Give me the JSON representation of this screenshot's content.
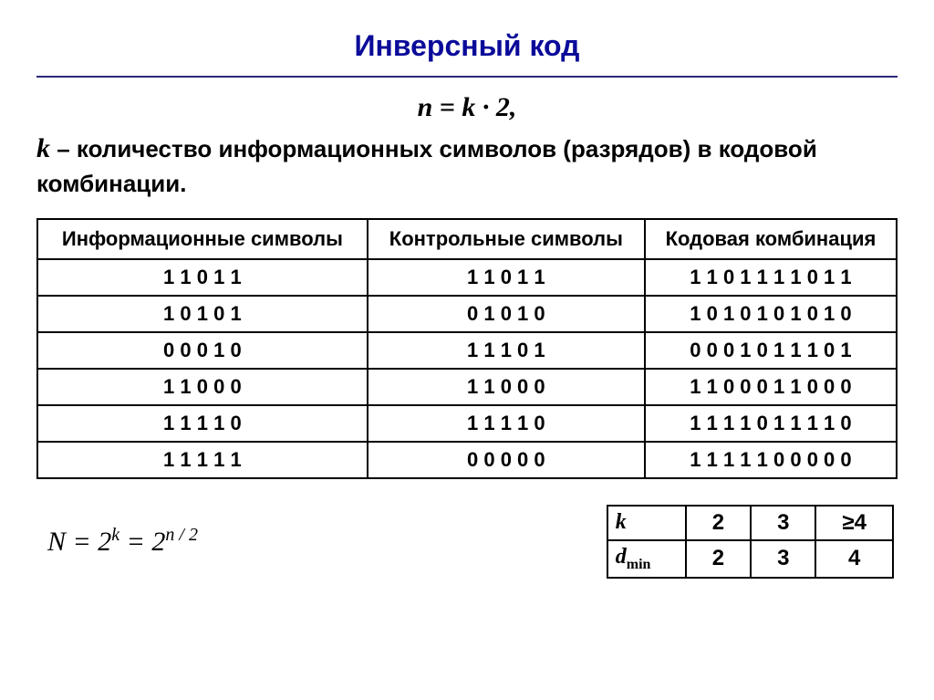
{
  "title": "Инверсный код",
  "formula_top": "n = k · 2,",
  "description_k": "k",
  "description_text": " – количество информационных символов (разрядов) в кодовой комбинации.",
  "table": {
    "headers": [
      "Информационные символы",
      "Контрольные символы",
      "Кодовая комбинация"
    ],
    "rows": [
      [
        "1 1 0 1 1",
        "1 1 0 1 1",
        "1 1 0 1 1 1 1 0 1 1"
      ],
      [
        "1 0 1 0 1",
        "0 1 0 1 0",
        "1 0 1 0 1 0 1 0 1 0"
      ],
      [
        "0 0 0 1 0",
        "1 1 1 0 1",
        "0 0 0 1 0 1 1 1 0 1"
      ],
      [
        "1 1 0 0 0",
        "1 1 0 0 0",
        "1 1 0 0 0 1 1 0 0 0"
      ],
      [
        "1 1 1 1 0",
        "1 1 1 1 0",
        "1 1 1 1 0 1 1 1 1 0"
      ],
      [
        "1 1 1 1 1",
        "0 0 0 0 0",
        "1 1 1 1 1 0 0 0 0 0"
      ]
    ]
  },
  "formula_bottom_html": "N = 2<sup>k</sup> = 2<sup>n / 2</sup>",
  "mini_table": {
    "row1_head": "k",
    "row1": [
      "2",
      "3",
      "≥4"
    ],
    "row2_head_html": "d<sub>min</sub>",
    "row2": [
      "2",
      "3",
      "4"
    ]
  },
  "colors": {
    "title": "#0b0b9a",
    "rule": "#2a2a7a",
    "text": "#000000",
    "border": "#000000",
    "background": "#ffffff"
  },
  "fonts": {
    "title_size": 32,
    "body_size": 26,
    "table_size": 22,
    "formula_size": 30
  }
}
